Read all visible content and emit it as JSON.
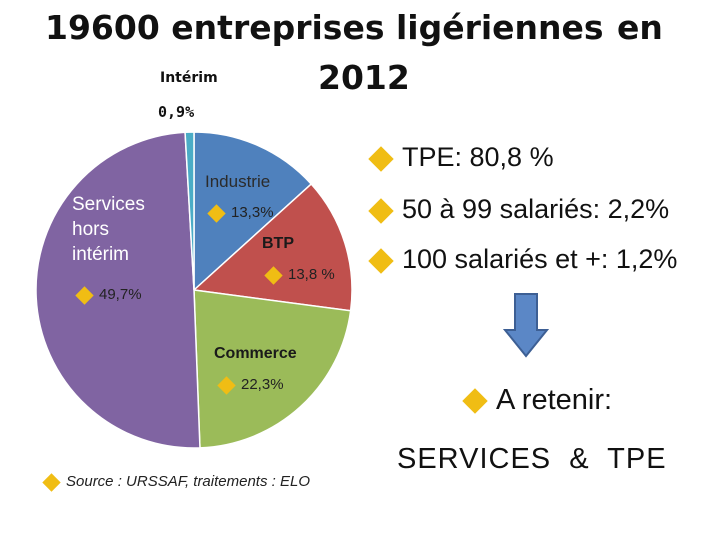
{
  "title": {
    "line1": "19600 entreprises ligériennes",
    "en": "en",
    "year": "2012"
  },
  "chart_data": {
    "type": "pie",
    "slices": [
      {
        "label": "Industrie",
        "value": 13.3,
        "value_label": "13,3%",
        "color": "#4f81bd"
      },
      {
        "label": "BTP",
        "value": 13.8,
        "value_label": "13,8 %",
        "color": "#c0504d"
      },
      {
        "label": "Commerce",
        "value": 22.3,
        "value_label": "22,3%",
        "color": "#9bbb59"
      },
      {
        "label": "Services hors intérim",
        "value": 49.7,
        "value_label": "49,7%",
        "color": "#8064a2"
      },
      {
        "label": "Intérim",
        "value": 0.9,
        "value_label": "0,9%",
        "color": "#4bacc6"
      }
    ]
  },
  "labels": {
    "interim": "Intérim",
    "industrie": "Industrie",
    "btp": "BTP",
    "commerce": "Commerce",
    "services": [
      "Services",
      "hors",
      "intérim"
    ]
  },
  "source": "Source : URSSAF, traitements : ELO",
  "bullets": [
    "TPE: 80,8 %",
    "50 à 99 salariés: 2,2%",
    "100 salariés et +: 1,2%"
  ],
  "retenir": "A retenir:",
  "conclusion": "SERVICES  &  TPE",
  "colors": {
    "diamond": "#f0bd14",
    "arrow_fill": "#5b87c6",
    "arrow_stroke": "#3d5f94"
  }
}
